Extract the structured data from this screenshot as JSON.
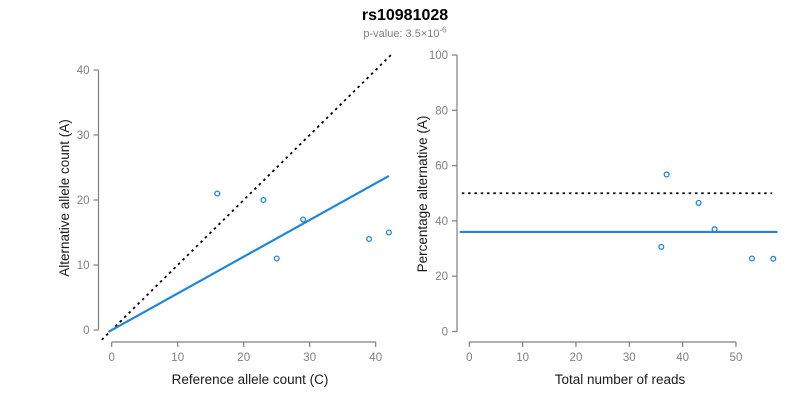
{
  "header": {
    "title": "rs10981028",
    "subtitle_prefix": "p-value: 3.5×10",
    "subtitle_exponent": "-6"
  },
  "colors": {
    "accent_blue": "#1E86E0",
    "axis": "#7f7f7f",
    "tick_label": "#7f7f7f",
    "axis_title": "#1a1a1a",
    "title": "#000000",
    "subtitle": "#7f7f7f",
    "dotted_line": "#000000"
  },
  "chart_data": [
    {
      "type": "scatter",
      "title": "",
      "xlabel": "Reference allele count (C)",
      "ylabel": "Alternative allele count (A)",
      "xlim": [
        0,
        42
      ],
      "ylim": [
        0,
        42
      ],
      "xticks": [
        0,
        10,
        20,
        30,
        40
      ],
      "yticks": [
        0,
        10,
        20,
        30,
        40
      ],
      "grid": false,
      "legend": null,
      "points": [
        [
          16,
          21
        ],
        [
          23,
          20
        ],
        [
          25,
          11
        ],
        [
          29,
          17
        ],
        [
          39,
          14
        ],
        [
          42,
          15
        ]
      ],
      "lines": [
        {
          "name": "identity-line",
          "style": "dotted",
          "color": "#000000",
          "x1": -1.5,
          "y1": -1.5,
          "x2": 42.3,
          "y2": 42.3
        },
        {
          "name": "fit-line",
          "style": "solid",
          "color": "#1E86E0",
          "x1": -0.5,
          "y1": -0.3,
          "x2": 42.0,
          "y2": 23.7
        }
      ]
    },
    {
      "type": "scatter",
      "title": "",
      "xlabel": "Total number of reads",
      "ylabel": "Percentage alternative (A)",
      "xlim": [
        0,
        57.5
      ],
      "ylim": [
        0,
        100
      ],
      "xticks": [
        0,
        10,
        20,
        30,
        40,
        50
      ],
      "yticks": [
        0,
        20,
        40,
        60,
        80,
        100
      ],
      "grid": false,
      "legend": null,
      "points": [
        [
          36,
          30.6
        ],
        [
          37,
          56.8
        ],
        [
          43,
          46.5
        ],
        [
          46,
          37.0
        ],
        [
          53,
          26.4
        ],
        [
          57,
          26.3
        ]
      ],
      "lines": [
        {
          "name": "fifty-percent-line",
          "style": "dotted",
          "color": "#000000",
          "x1": -1.4,
          "y1": 50,
          "x2": 56.8,
          "y2": 50
        },
        {
          "name": "mean-percentage-line",
          "style": "solid",
          "color": "#1E86E0",
          "x1": -1.8,
          "y1": 36,
          "x2": 57.8,
          "y2": 36
        }
      ]
    }
  ]
}
